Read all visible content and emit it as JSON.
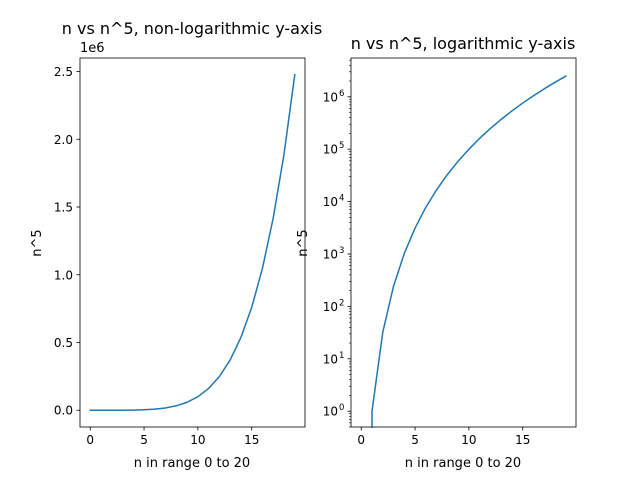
{
  "chart_data": [
    {
      "type": "line",
      "title": "n vs n^5, non-logarithmic y-axis",
      "xlabel": "n in range 0 to 20",
      "ylabel": "n^5",
      "y_offset_label": "1e6",
      "y_scale": "linear",
      "xlim": [
        -0.95,
        19.95
      ],
      "ylim": [
        -123805,
        2599900
      ],
      "x_ticks": [
        0,
        5,
        10,
        15
      ],
      "x_tick_labels": [
        "0",
        "5",
        "10",
        "15"
      ],
      "y_ticks": [
        0,
        500000,
        1000000,
        1500000,
        2000000,
        2500000
      ],
      "y_tick_labels": [
        "0.0",
        "0.5",
        "1.0",
        "1.5",
        "2.0",
        "2.5"
      ],
      "grid": false,
      "series": [
        {
          "color": "#1f77b4",
          "x": [
            0,
            1,
            2,
            3,
            4,
            5,
            6,
            7,
            8,
            9,
            10,
            11,
            12,
            13,
            14,
            15,
            16,
            17,
            18,
            19
          ],
          "y": [
            0,
            1,
            32,
            243,
            1024,
            3125,
            7776,
            16807,
            32768,
            59049,
            100000,
            161051,
            248832,
            371293,
            537824,
            759375,
            1048576,
            1419857,
            1889568,
            2476099
          ]
        }
      ]
    },
    {
      "type": "line",
      "title": "n vs n^5, logarithmic y-axis",
      "xlabel": "n in range 0 to 20",
      "ylabel": "n^5",
      "y_scale": "log",
      "xlim": [
        -0.95,
        19.95
      ],
      "ylim": [
        0.5,
        5500000
      ],
      "x_ticks": [
        0,
        5,
        10,
        15
      ],
      "x_tick_labels": [
        "0",
        "5",
        "10",
        "15"
      ],
      "y_tick_exponents": [
        0,
        1,
        2,
        3,
        4,
        5,
        6
      ],
      "y_tick_base": "10",
      "grid": false,
      "series": [
        {
          "color": "#1f77b4",
          "x": [
            1,
            2,
            3,
            4,
            5,
            6,
            7,
            8,
            9,
            10,
            11,
            12,
            13,
            14,
            15,
            16,
            17,
            18,
            19
          ],
          "y": [
            1,
            32,
            243,
            1024,
            3125,
            7776,
            16807,
            32768,
            59049,
            100000,
            161051,
            248832,
            371293,
            537824,
            759375,
            1048576,
            1419857,
            1889568,
            2476099
          ]
        }
      ]
    }
  ]
}
